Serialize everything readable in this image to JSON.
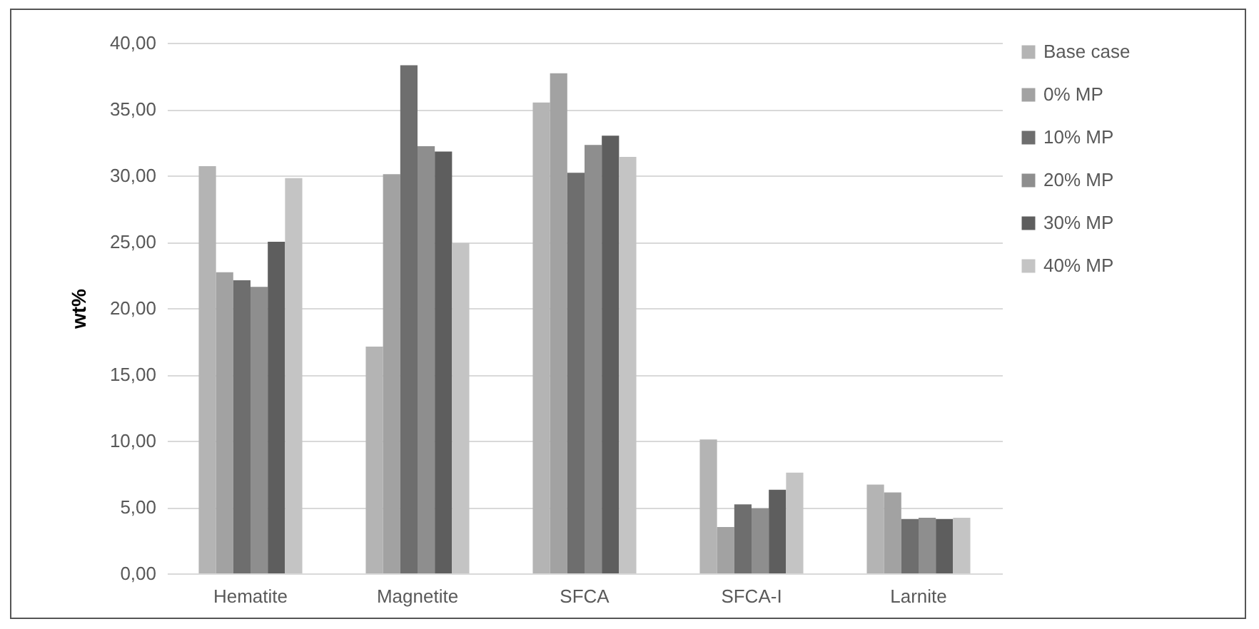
{
  "chart_data": {
    "type": "bar",
    "ylabel": "wt%",
    "categories": [
      "Hematite",
      "Magnetite",
      "SFCA",
      "SFCA-I",
      "Larnite"
    ],
    "series": [
      {
        "name": "Base case",
        "color": "#b4b4b4",
        "values": [
          30.7,
          17.1,
          35.5,
          10.1,
          6.7
        ]
      },
      {
        "name": "0% MP",
        "color": "#a2a2a2",
        "values": [
          22.7,
          30.1,
          37.7,
          3.5,
          6.1
        ]
      },
      {
        "name": "10% MP",
        "color": "#6e6e6e",
        "values": [
          22.1,
          38.3,
          30.2,
          5.2,
          4.1
        ]
      },
      {
        "name": "20% MP",
        "color": "#8e8e8e",
        "values": [
          21.6,
          32.2,
          32.3,
          4.9,
          4.2
        ]
      },
      {
        "name": "30% MP",
        "color": "#5e5e5e",
        "values": [
          25.0,
          31.8,
          33.0,
          6.3,
          4.1
        ]
      },
      {
        "name": "40% MP",
        "color": "#c4c4c4",
        "values": [
          29.8,
          24.9,
          31.4,
          7.6,
          4.2
        ]
      }
    ],
    "ylim": [
      0,
      40
    ],
    "yticks": [
      {
        "value": 0,
        "label": "0,00"
      },
      {
        "value": 5,
        "label": "5,00"
      },
      {
        "value": 10,
        "label": "10,00"
      },
      {
        "value": 15,
        "label": "15,00"
      },
      {
        "value": 20,
        "label": "20,00"
      },
      {
        "value": 25,
        "label": "25,00"
      },
      {
        "value": 30,
        "label": "30,00"
      },
      {
        "value": 35,
        "label": "35,00"
      },
      {
        "value": 40,
        "label": "40,00"
      }
    ],
    "grid": "y",
    "legend": "right"
  }
}
